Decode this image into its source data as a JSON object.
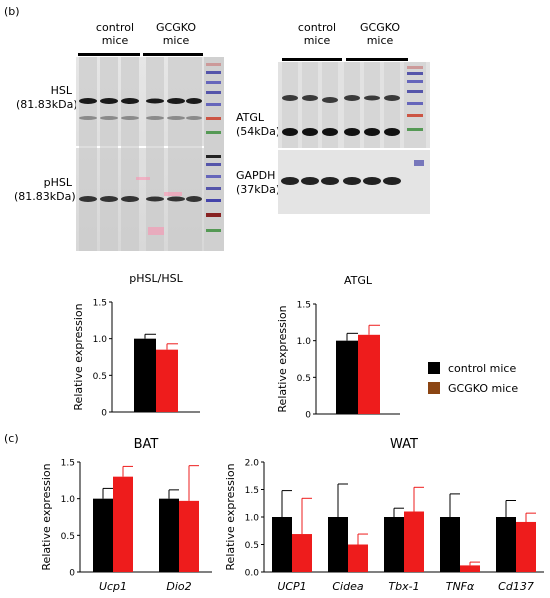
{
  "panel_b_label": "(b)",
  "panel_c_label": "(c)",
  "blots": {
    "left": {
      "group1": "control\nmice",
      "group2": "GCGKO\nmice",
      "band1": "HSL\n(81.83kDa)",
      "band2": "pHSL\n(81.83kDa)"
    },
    "right": {
      "group1": "control\nmice",
      "group2": "GCGKO\nmice",
      "band1": "ATGL\n(54kDa)",
      "band2": "GAPDH\n(37kDa)"
    }
  },
  "legend": {
    "items": [
      {
        "label": "control mice",
        "color": "#000000"
      },
      {
        "label": "GCGKO mice",
        "color": "#8b4513"
      }
    ]
  },
  "colors": {
    "control": "#000000",
    "gcgko": "#ee1c1c",
    "error": "#ee1c1c"
  },
  "chart_data": [
    {
      "type": "bar",
      "title": "pHSL/HSL",
      "ylabel": "Relative expression",
      "ylim": [
        0,
        1.5
      ],
      "yticks": [
        "0",
        "0.5",
        "1.0",
        "1.5"
      ],
      "categories": [
        ""
      ],
      "series": [
        {
          "name": "control mice",
          "values": [
            1.0
          ],
          "error": [
            0.06
          ]
        },
        {
          "name": "GCGKO mice",
          "values": [
            0.85
          ],
          "error": [
            0.08
          ]
        }
      ]
    },
    {
      "type": "bar",
      "title": "ATGL",
      "ylabel": "Relative expression",
      "ylim": [
        0,
        1.5
      ],
      "yticks": [
        "0",
        "0.5",
        "1.0",
        "1.5"
      ],
      "categories": [
        ""
      ],
      "series": [
        {
          "name": "control mice",
          "values": [
            1.0
          ],
          "error": [
            0.1
          ]
        },
        {
          "name": "GCGKO mice",
          "values": [
            1.08
          ],
          "error": [
            0.13
          ]
        }
      ]
    },
    {
      "type": "bar",
      "title": "BAT",
      "ylabel": "Relative expression",
      "ylim": [
        0,
        1.5
      ],
      "yticks": [
        "0",
        "0.5",
        "1.0",
        "1.5"
      ],
      "categories": [
        "Ucp1",
        "Dio2"
      ],
      "series": [
        {
          "name": "control mice",
          "values": [
            1.0,
            1.0
          ],
          "error": [
            0.14,
            0.12
          ]
        },
        {
          "name": "GCGKO mice",
          "values": [
            1.3,
            0.97
          ],
          "error": [
            0.14,
            0.48
          ]
        }
      ]
    },
    {
      "type": "bar",
      "title": "WAT",
      "ylabel": "Relative expression",
      "ylim": [
        0,
        2.0
      ],
      "yticks": [
        "0.0",
        "0.5",
        "1.0",
        "1.5",
        "2.0"
      ],
      "categories": [
        "UCP1",
        "Cidea",
        "Tbx-1",
        "TNFα",
        "Cd137"
      ],
      "series": [
        {
          "name": "control mice",
          "values": [
            1.0,
            1.0,
            1.0,
            1.0,
            1.0
          ],
          "error": [
            0.48,
            0.6,
            0.16,
            0.42,
            0.3
          ]
        },
        {
          "name": "GCGKO mice",
          "values": [
            0.69,
            0.5,
            1.1,
            0.12,
            0.91
          ],
          "error": [
            0.65,
            0.19,
            0.44,
            0.06,
            0.16
          ]
        }
      ]
    }
  ]
}
